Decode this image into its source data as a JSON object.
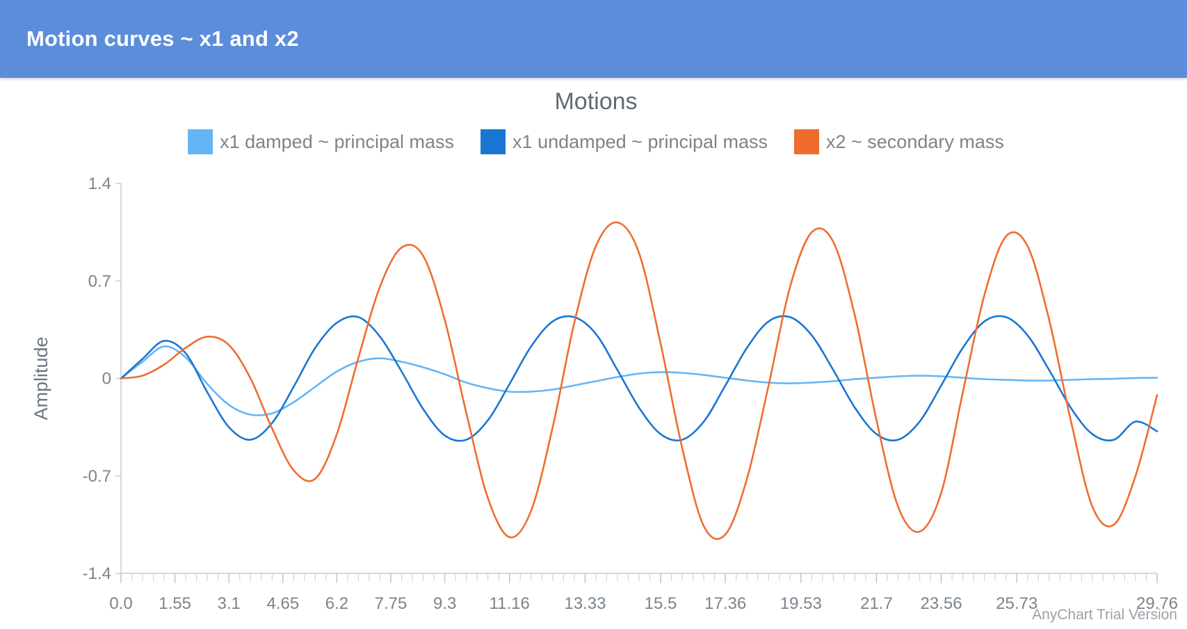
{
  "header": {
    "title": "Motion curves ~ x1 and x2"
  },
  "watermark": "AnyChart Trial Version",
  "chart_data": {
    "type": "line",
    "title": "Motions",
    "xlabel": "",
    "ylabel": "Amplitude",
    "xlim": [
      0,
      29.76
    ],
    "ylim": [
      -1.4,
      1.4
    ],
    "yticks": [
      -1.4,
      -0.7,
      0,
      0.7,
      1.4
    ],
    "ytick_labels": [
      "-1.4",
      "-0.7",
      "0",
      "0.7",
      "1.4"
    ],
    "xticks": [
      0.0,
      1.55,
      3.1,
      4.65,
      6.2,
      7.75,
      9.3,
      11.16,
      13.33,
      15.5,
      17.36,
      19.53,
      21.7,
      23.56,
      25.73,
      29.76
    ],
    "xtick_labels": [
      "0.0",
      "1.55",
      "3.1",
      "4.65",
      "6.2",
      "7.75",
      "9.3",
      "11.16",
      "13.33",
      "15.5",
      "17.36",
      "19.53",
      "21.7",
      "23.56",
      "25.73",
      "29.76"
    ],
    "legend_position": "top",
    "grid": false,
    "x": [
      0,
      0.62,
      1.24,
      1.86,
      2.48,
      3.1,
      3.72,
      4.34,
      4.96,
      5.58,
      6.2,
      6.82,
      7.44,
      8.06,
      8.68,
      9.3,
      9.92,
      10.54,
      11.16,
      11.78,
      12.4,
      13.02,
      13.64,
      14.26,
      14.88,
      15.5,
      16.12,
      16.74,
      17.36,
      17.98,
      18.6,
      19.22,
      19.84,
      20.46,
      21.08,
      21.7,
      22.32,
      22.94,
      23.56,
      24.18,
      24.8,
      25.42,
      26.04,
      26.66,
      27.28,
      27.9,
      28.52,
      29.14,
      29.76
    ],
    "series": [
      {
        "name": "x1 damped ~ principal mass",
        "color": "#64b5f6",
        "values": [
          0,
          0.12,
          0.23,
          0.15,
          -0.04,
          -0.19,
          -0.26,
          -0.25,
          -0.17,
          -0.06,
          0.05,
          0.12,
          0.145,
          0.12,
          0.08,
          0.03,
          -0.03,
          -0.07,
          -0.095,
          -0.095,
          -0.08,
          -0.05,
          -0.02,
          0.01,
          0.035,
          0.045,
          0.04,
          0.025,
          0.005,
          -0.015,
          -0.03,
          -0.035,
          -0.03,
          -0.02,
          -0.005,
          0.005,
          0.015,
          0.02,
          0.015,
          0.005,
          -0.005,
          -0.01,
          -0.015,
          -0.015,
          -0.01,
          -0.005,
          -0.002,
          0.003,
          0.005
        ]
      },
      {
        "name": "x1 undamped ~ principal mass",
        "color": "#1976d2",
        "values": [
          0,
          0.14,
          0.27,
          0.18,
          -0.1,
          -0.35,
          -0.44,
          -0.32,
          -0.06,
          0.22,
          0.4,
          0.44,
          0.3,
          0.05,
          -0.22,
          -0.41,
          -0.44,
          -0.3,
          -0.04,
          0.23,
          0.41,
          0.44,
          0.32,
          0.06,
          -0.21,
          -0.4,
          -0.44,
          -0.31,
          -0.05,
          0.22,
          0.41,
          0.44,
          0.31,
          0.06,
          -0.21,
          -0.4,
          -0.44,
          -0.31,
          -0.05,
          0.22,
          0.41,
          0.44,
          0.31,
          0.06,
          -0.21,
          -0.4,
          -0.44,
          -0.31,
          -0.38
        ]
      },
      {
        "name": "x2 ~ secondary mass",
        "color": "#ef6c2f",
        "values": [
          0,
          0.02,
          0.1,
          0.22,
          0.3,
          0.24,
          0.0,
          -0.36,
          -0.66,
          -0.72,
          -0.4,
          0.15,
          0.66,
          0.94,
          0.88,
          0.42,
          -0.25,
          -0.86,
          -1.14,
          -0.95,
          -0.35,
          0.4,
          0.95,
          1.12,
          0.9,
          0.25,
          -0.5,
          -1.06,
          -1.12,
          -0.72,
          -0.05,
          0.66,
          1.05,
          0.98,
          0.45,
          -0.3,
          -0.92,
          -1.1,
          -0.82,
          -0.1,
          0.6,
          1.02,
          0.95,
          0.42,
          -0.3,
          -0.92,
          -1.05,
          -0.7,
          -0.12
        ]
      }
    ]
  }
}
